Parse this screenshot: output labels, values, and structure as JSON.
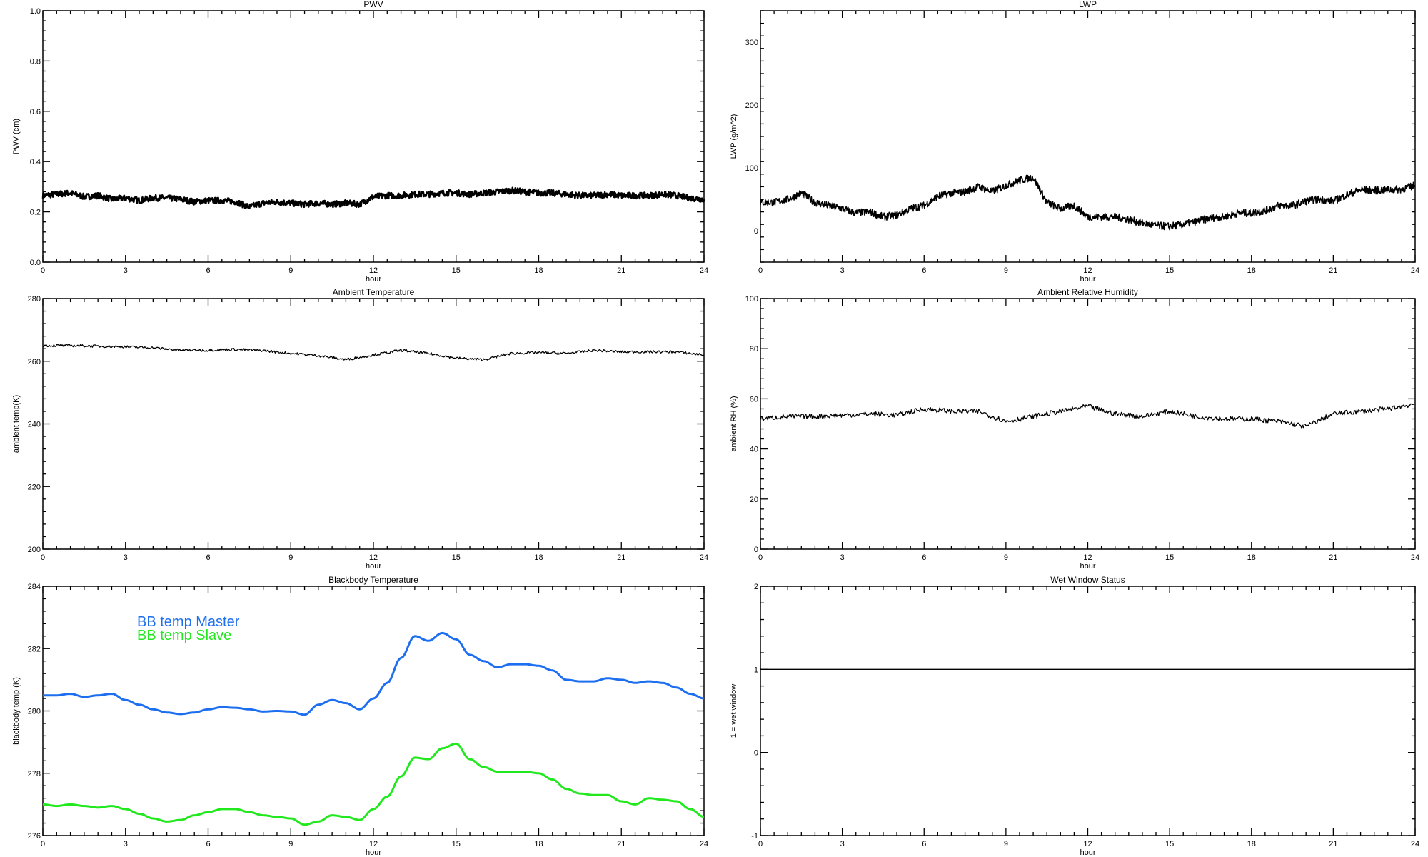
{
  "chart_data": [
    {
      "id": "pwv",
      "type": "line",
      "title": "PWV",
      "xlabel": "hour",
      "ylabel": "PWV (cm)",
      "xlim": [
        0,
        24
      ],
      "ylim": [
        0,
        1
      ],
      "xticks": [
        "0",
        "3",
        "6",
        "9",
        "12",
        "15",
        "18",
        "21",
        "24"
      ],
      "yticks": [
        "0.0",
        "0.2",
        "0.4",
        "0.6",
        "0.8",
        "1.0"
      ],
      "ytick_values": [
        0,
        0.2,
        0.4,
        0.6,
        0.8,
        1.0
      ],
      "series": [
        {
          "name": "PWV",
          "color": "#000000",
          "x_step": 0.5,
          "values": [
            0.265,
            0.27,
            0.275,
            0.26,
            0.265,
            0.25,
            0.255,
            0.245,
            0.255,
            0.255,
            0.25,
            0.24,
            0.245,
            0.245,
            0.24,
            0.22,
            0.235,
            0.24,
            0.235,
            0.23,
            0.235,
            0.23,
            0.235,
            0.23,
            0.26,
            0.265,
            0.265,
            0.27,
            0.27,
            0.275,
            0.275,
            0.27,
            0.275,
            0.28,
            0.285,
            0.28,
            0.275,
            0.275,
            0.27,
            0.265,
            0.265,
            0.27,
            0.265,
            0.265,
            0.265,
            0.27,
            0.265,
            0.255,
            0.25
          ]
        }
      ]
    },
    {
      "id": "lwp",
      "type": "line",
      "title": "LWP",
      "xlabel": "hour",
      "ylabel": "LWP (g/m^2)",
      "xlim": [
        0,
        24
      ],
      "ylim": [
        -50,
        350
      ],
      "xticks": [
        "0",
        "3",
        "6",
        "9",
        "12",
        "15",
        "18",
        "21",
        "24"
      ],
      "yticks": [
        "0",
        "100",
        "200",
        "300"
      ],
      "ytick_values": [
        0,
        100,
        200,
        300
      ],
      "series": [
        {
          "name": "LWP",
          "color": "#000000",
          "x_step": 0.5,
          "values": [
            45,
            45,
            50,
            60,
            45,
            40,
            35,
            28,
            30,
            22,
            25,
            35,
            40,
            55,
            60,
            62,
            70,
            62,
            72,
            80,
            85,
            45,
            35,
            40,
            22,
            22,
            22,
            18,
            12,
            8,
            7,
            10,
            15,
            20,
            22,
            28,
            28,
            32,
            40,
            40,
            47,
            50,
            47,
            57,
            65,
            64,
            65,
            66,
            72
          ]
        }
      ]
    },
    {
      "id": "ambient_temp",
      "type": "line",
      "title": "Ambient Temperature",
      "xlabel": "hour",
      "ylabel": "ambient temp(K)",
      "xlim": [
        0,
        24
      ],
      "ylim": [
        200,
        280
      ],
      "xticks": [
        "0",
        "3",
        "6",
        "9",
        "12",
        "15",
        "18",
        "21",
        "24"
      ],
      "yticks": [
        "200",
        "220",
        "240",
        "260",
        "280"
      ],
      "ytick_values": [
        200,
        220,
        240,
        260,
        280
      ],
      "series": [
        {
          "name": "ambient temp",
          "color": "#000000",
          "x_step": 1,
          "values": [
            265,
            265,
            264.8,
            264.6,
            264.3,
            263.5,
            263.5,
            263.8,
            263.4,
            262.5,
            261.8,
            260.5,
            262,
            263.5,
            262.5,
            261,
            260.5,
            262.5,
            262.8,
            262.5,
            263.5,
            263,
            263,
            263,
            262
          ]
        }
      ]
    },
    {
      "id": "ambient_rh",
      "type": "line",
      "title": "Ambient Relative Humidity",
      "xlabel": "hour",
      "ylabel": "ambient RH (%)",
      "xlim": [
        0,
        24
      ],
      "ylim": [
        0,
        100
      ],
      "xticks": [
        "0",
        "3",
        "6",
        "9",
        "12",
        "15",
        "18",
        "21",
        "24"
      ],
      "yticks": [
        "0",
        "20",
        "40",
        "60",
        "80",
        "100"
      ],
      "ytick_values": [
        0,
        20,
        40,
        60,
        80,
        100
      ],
      "series": [
        {
          "name": "ambient RH",
          "color": "#000000",
          "x_step": 1,
          "values": [
            52,
            53,
            53,
            53.5,
            54,
            53.5,
            56,
            55,
            55,
            51,
            53,
            55,
            57,
            54,
            53,
            55,
            53,
            52,
            52,
            51,
            49,
            54,
            55,
            56,
            58
          ]
        }
      ]
    },
    {
      "id": "blackbody",
      "type": "line",
      "title": "Blackbody Temperature",
      "xlabel": "hour",
      "ylabel": "blackbody temp (K)",
      "xlim": [
        0,
        24
      ],
      "ylim": [
        276,
        284
      ],
      "xticks": [
        "0",
        "3",
        "6",
        "9",
        "12",
        "15",
        "18",
        "21",
        "24"
      ],
      "yticks": [
        "276",
        "278",
        "280",
        "282",
        "284"
      ],
      "ytick_values": [
        276,
        278,
        280,
        282,
        284
      ],
      "legend": "top-left",
      "series": [
        {
          "name": "BB temp Master",
          "color": "#1e6ff0",
          "x_step": 0.5,
          "values": [
            280.5,
            280.5,
            280.55,
            280.45,
            280.5,
            280.55,
            280.35,
            280.2,
            280.05,
            279.95,
            279.9,
            279.95,
            280.05,
            280.12,
            280.1,
            280.05,
            279.98,
            280.0,
            279.98,
            279.88,
            280.2,
            280.35,
            280.25,
            280.05,
            280.4,
            280.9,
            281.7,
            282.4,
            282.25,
            282.5,
            282.3,
            281.8,
            281.6,
            281.4,
            281.5,
            281.5,
            281.45,
            281.3,
            281.0,
            280.95,
            280.95,
            281.05,
            281.0,
            280.9,
            280.95,
            280.9,
            280.75,
            280.55,
            280.4
          ]
        },
        {
          "name": "BB temp Slave",
          "color": "#22e81e",
          "x_step": 0.5,
          "values": [
            277,
            276.95,
            277,
            276.95,
            276.9,
            276.95,
            276.85,
            276.7,
            276.55,
            276.45,
            276.5,
            276.65,
            276.75,
            276.85,
            276.85,
            276.75,
            276.65,
            276.6,
            276.55,
            276.35,
            276.45,
            276.65,
            276.6,
            276.5,
            276.85,
            277.25,
            277.9,
            278.5,
            278.45,
            278.8,
            278.95,
            278.45,
            278.2,
            278.05,
            278.05,
            278.05,
            278.0,
            277.8,
            277.5,
            277.35,
            277.3,
            277.3,
            277.1,
            277.0,
            277.2,
            277.15,
            277.1,
            276.85,
            276.6
          ]
        }
      ]
    },
    {
      "id": "wet_window",
      "type": "line",
      "title": "Wet Window Status",
      "xlabel": "hour",
      "ylabel": "1 = wet window",
      "xlim": [
        0,
        24
      ],
      "ylim": [
        -1,
        2
      ],
      "xticks": [
        "0",
        "3",
        "6",
        "9",
        "12",
        "15",
        "18",
        "21",
        "24"
      ],
      "yticks": [
        "-1",
        "0",
        "1",
        "2"
      ],
      "ytick_values": [
        -1,
        0,
        1,
        2
      ],
      "series": [
        {
          "name": "wet window",
          "color": "#000000",
          "x_step": 24,
          "values": [
            1,
            1
          ]
        }
      ]
    }
  ]
}
